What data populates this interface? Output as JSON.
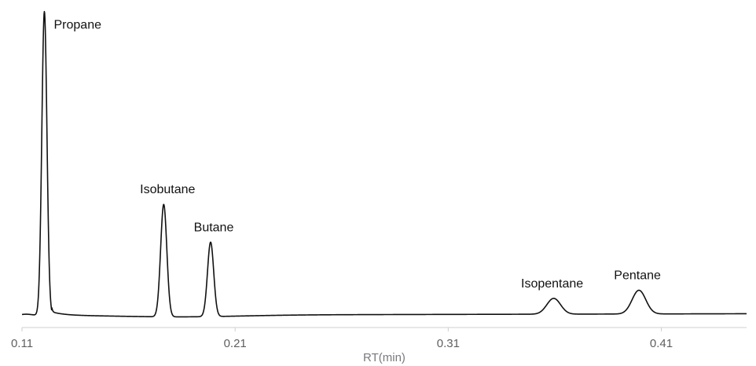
{
  "chart_data": {
    "type": "line",
    "title": "",
    "xlabel": "RT(min)",
    "ylabel": "",
    "xlim": [
      0.11,
      0.45
    ],
    "ylim": [
      0,
      1.0
    ],
    "grid": false,
    "xticks": [
      {
        "value": 0.11,
        "label": "0.11"
      },
      {
        "value": 0.21,
        "label": "0.21"
      },
      {
        "value": 0.31,
        "label": "0.31"
      },
      {
        "value": 0.41,
        "label": "0.41"
      }
    ],
    "line_color": "#111111",
    "peaks": [
      {
        "name": "Propane",
        "rt": 0.1205,
        "height": 1.0
      },
      {
        "name": "Isobutane",
        "rt": 0.1765,
        "height": 0.37
      },
      {
        "name": "Butane",
        "rt": 0.1985,
        "height": 0.245
      },
      {
        "name": "Isopentane",
        "rt": 0.3595,
        "height": 0.052
      },
      {
        "name": "Pentane",
        "rt": 0.3995,
        "height": 0.078
      }
    ]
  }
}
